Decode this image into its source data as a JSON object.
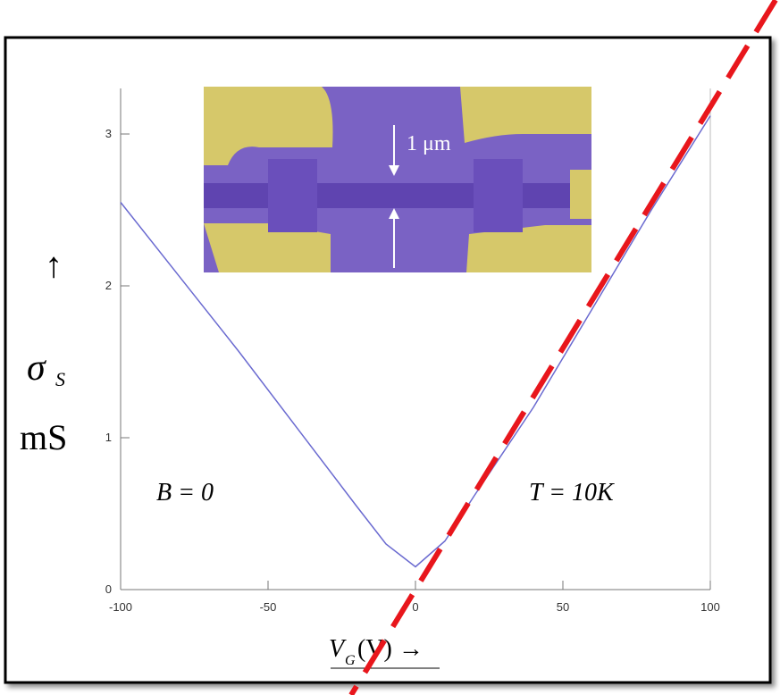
{
  "chart_data": {
    "type": "line",
    "x": [
      -100,
      -80,
      -60,
      -40,
      -20,
      -10,
      0,
      10,
      20,
      40,
      60,
      80,
      100
    ],
    "values": [
      2.55,
      2.06,
      1.57,
      1.06,
      0.55,
      0.3,
      0.15,
      0.32,
      0.62,
      1.2,
      1.85,
      2.5,
      3.12
    ],
    "color": "#6a6ad0",
    "xlim": [
      -100,
      100
    ],
    "xticks": [
      -100,
      -50,
      0,
      50,
      100
    ],
    "ylim": [
      0,
      3.3
    ],
    "yticks": [
      0,
      1,
      2,
      3
    ],
    "ylabel": {
      "arrow": "↑",
      "symbol": "σ",
      "subscript": "S",
      "unit": "mS"
    },
    "xlabel": {
      "symbol": "V",
      "subscript": "G",
      "rest": "(V) →"
    },
    "annotations": [
      "B = 0",
      "T = 10K",
      "1 μm"
    ]
  }
}
